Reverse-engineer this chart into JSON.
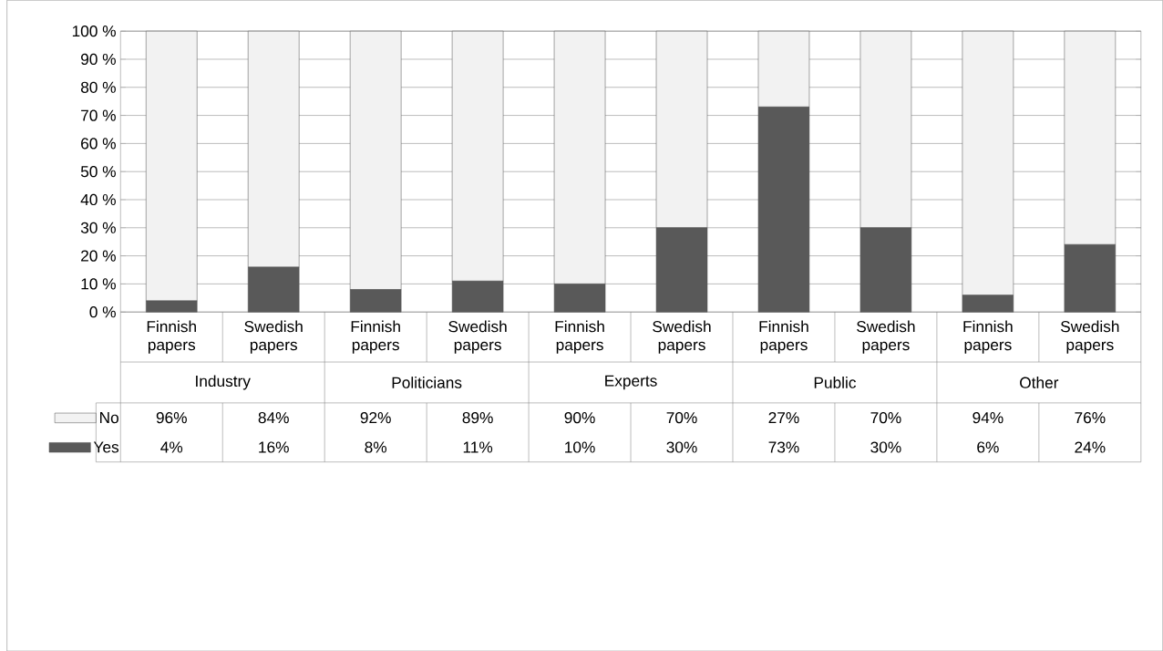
{
  "chart_data": {
    "type": "bar",
    "stacked": true,
    "categories": [
      "Finnish papers",
      "Swedish papers",
      "Finnish papers",
      "Swedish papers",
      "Finnish papers",
      "Swedish papers",
      "Finnish papers",
      "Swedish papers",
      "Finnish papers",
      "Swedish papers"
    ],
    "series": [
      {
        "name": "Yes",
        "color": "#595959",
        "values": [
          4,
          16,
          8,
          11,
          10,
          30,
          73,
          30,
          6,
          24
        ],
        "value_labels": [
          "4%",
          "16%",
          "8%",
          "11%",
          "10%",
          "30%",
          "73%",
          "30%",
          "6%",
          "24%"
        ]
      },
      {
        "name": "No",
        "color": "#f2f2f2",
        "values": [
          96,
          84,
          92,
          89,
          90,
          70,
          27,
          70,
          94,
          76
        ],
        "value_labels": [
          "96%",
          "84%",
          "92%",
          "89%",
          "90%",
          "70%",
          "27%",
          "70%",
          "94%",
          "76%"
        ]
      }
    ],
    "annotations": [
      "Industry",
      "Politicians",
      "Experts",
      "Public",
      "Other"
    ],
    "ylim": [
      0,
      100
    ],
    "yticks": [
      {
        "value": 0,
        "label": "0 %"
      },
      {
        "value": 10,
        "label": "10 %"
      },
      {
        "value": 20,
        "label": "20 %"
      },
      {
        "value": 30,
        "label": "30 %"
      },
      {
        "value": 40,
        "label": "40 %"
      },
      {
        "value": 50,
        "label": "50 %"
      },
      {
        "value": 60,
        "label": "60 %"
      },
      {
        "value": 70,
        "label": "70 %"
      },
      {
        "value": 80,
        "label": "80 %"
      },
      {
        "value": 90,
        "label": "90 %"
      },
      {
        "value": 100,
        "label": "100 %"
      }
    ],
    "grid": true,
    "legend": "bottom"
  }
}
